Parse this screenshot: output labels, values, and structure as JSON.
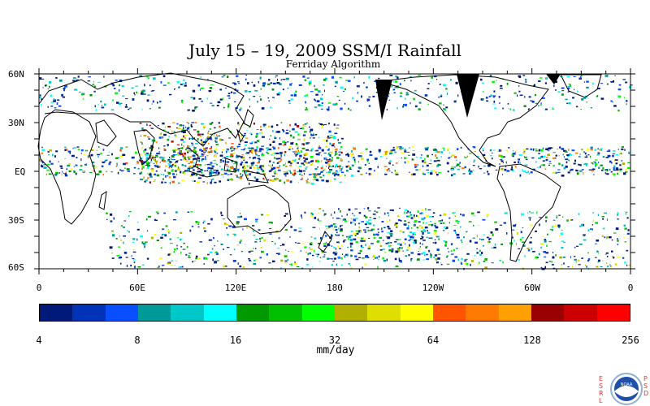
{
  "title": "July 15 – 19, 2009 SSM/I Rainfall",
  "subtitle": "Ferriday Algorithm",
  "map": {
    "lat_labels": [
      "60N",
      "30N",
      "EQ",
      "30S",
      "60S"
    ],
    "lon_labels": [
      "0",
      "60E",
      "120E",
      "180",
      "120W",
      "60W",
      "0"
    ],
    "lat_range": [
      -60,
      60
    ],
    "lon_range": [
      0,
      360
    ]
  },
  "colorbar": {
    "colors": [
      "#001a7a",
      "#0033b8",
      "#0a4fff",
      "#009999",
      "#00c8c8",
      "#00ffff",
      "#009900",
      "#00c000",
      "#00ff00",
      "#b0b000",
      "#dede00",
      "#ffff00",
      "#ff5500",
      "#ff7a00",
      "#ff9f00",
      "#990000",
      "#cc0000",
      "#ff0000"
    ],
    "ticks": [
      "4",
      "8",
      "16",
      "32",
      "64",
      "128",
      "256"
    ],
    "unit": "mm/day"
  },
  "logo": {
    "left_text": "ESRL",
    "right_text": "PSD",
    "center": "NOAA"
  }
}
